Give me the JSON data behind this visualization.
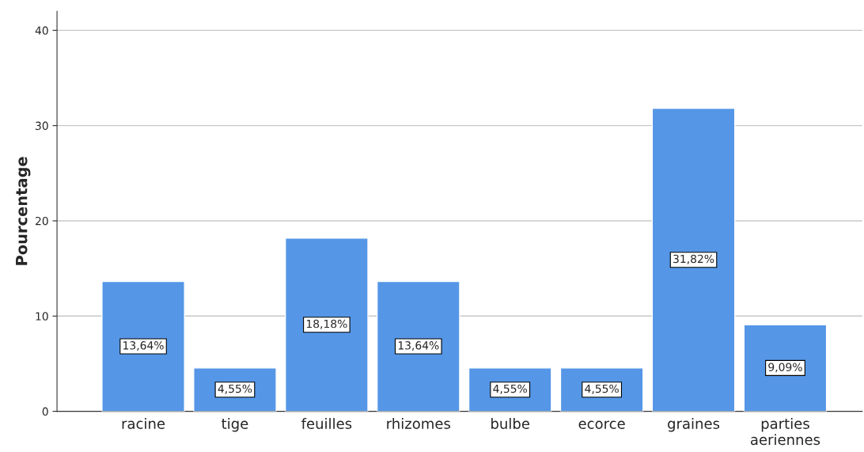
{
  "chart_data": {
    "type": "bar",
    "ylabel": "Pourcentage",
    "categories": [
      "racine",
      "tige",
      "feuilles",
      "rhizomes",
      "bulbe",
      "ecorce",
      "graines",
      "parties\naeriennes"
    ],
    "values": [
      13.64,
      4.55,
      18.18,
      13.64,
      4.55,
      4.55,
      31.82,
      9.09
    ],
    "value_labels": [
      "13,64%",
      "4,55%",
      "18,18%",
      "13,64%",
      "4,55%",
      "4,55%",
      "31,82%",
      "9,09%"
    ],
    "color": "#5596e6",
    "ylim": [
      0,
      42
    ],
    "yticks": [
      0,
      10,
      20,
      30,
      40
    ],
    "grid": "y"
  }
}
